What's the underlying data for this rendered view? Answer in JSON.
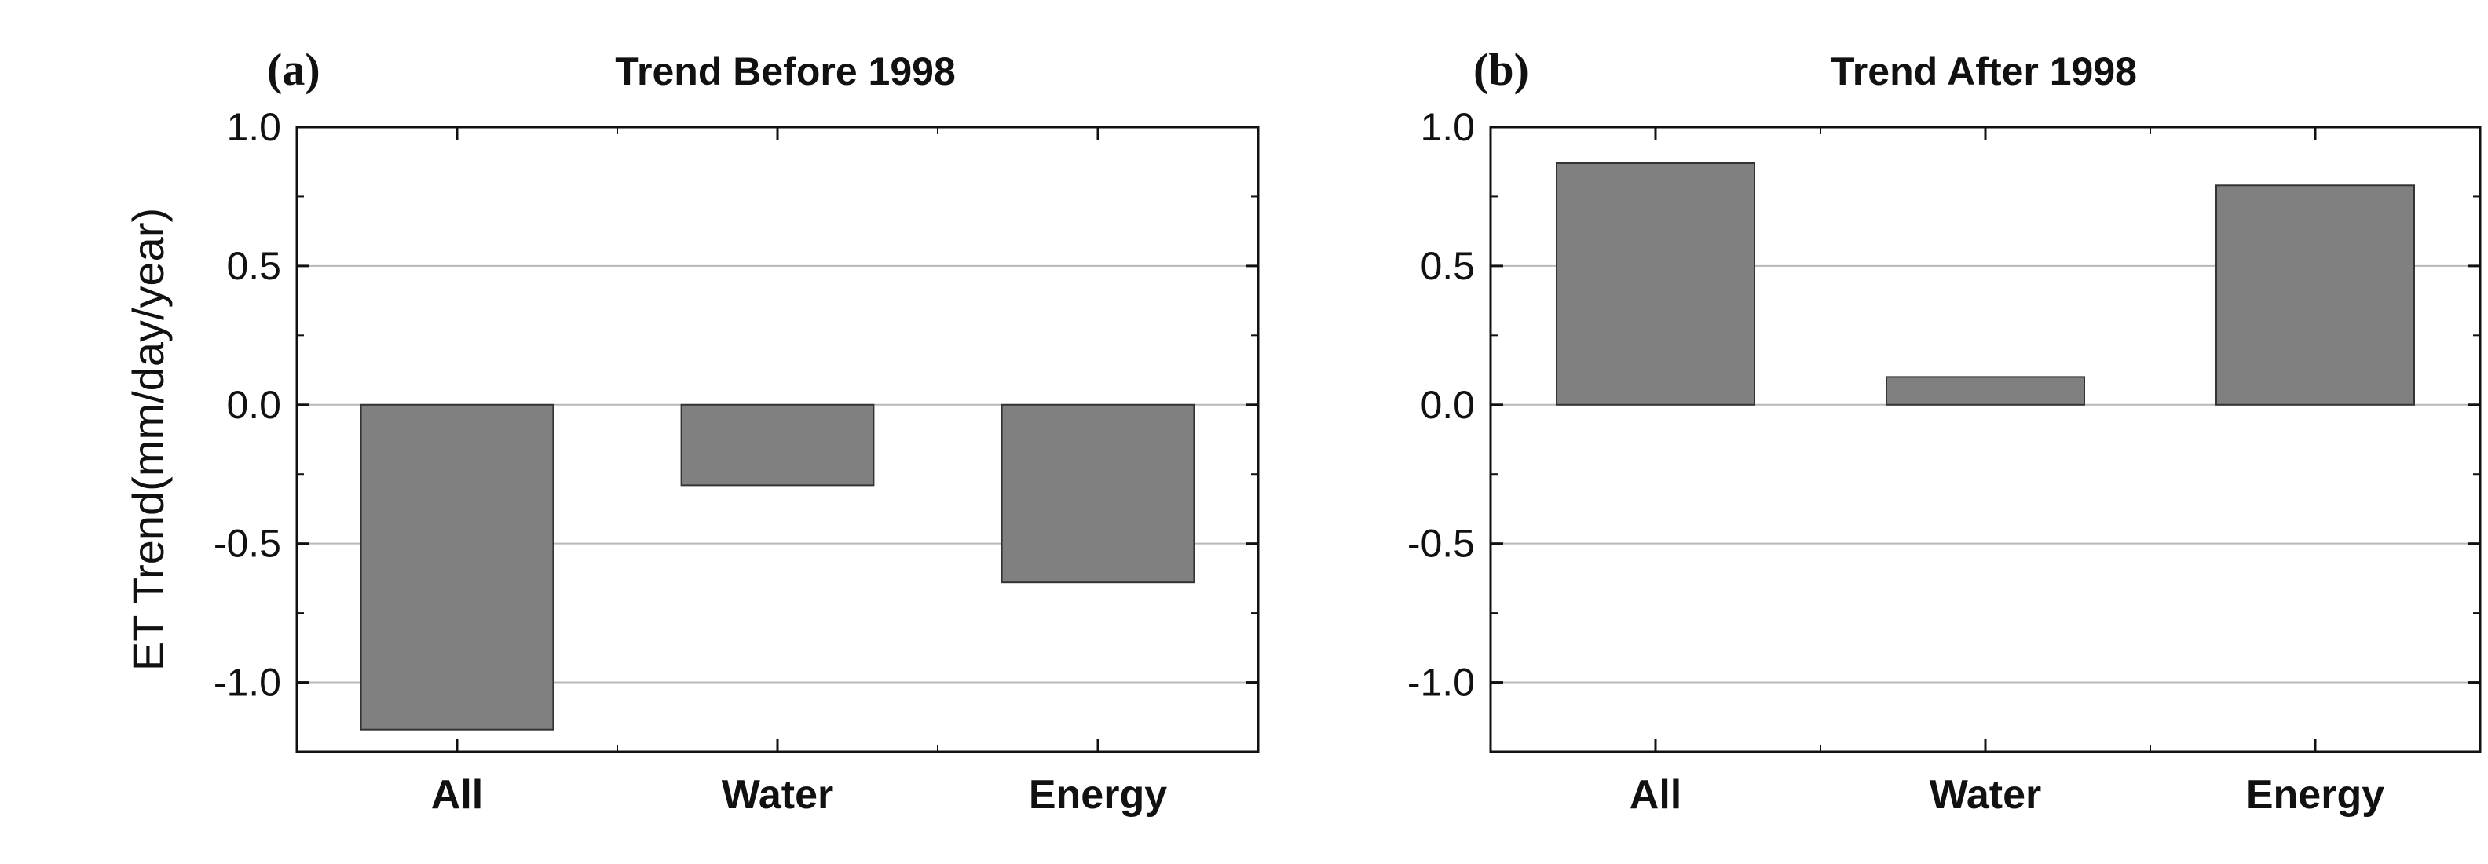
{
  "chart_data": [
    {
      "type": "bar",
      "panel_label": "(a)",
      "title": "Trend Before 1998",
      "ylabel": "ET Trend(mm/day/year)",
      "xlabel": "",
      "categories": [
        "All",
        "Water",
        "Energy"
      ],
      "values": [
        -1.17,
        -0.29,
        -0.64
      ],
      "ylim": [
        -1.25,
        1.0
      ],
      "yticks": [
        "1.0",
        "0.5",
        "0.0",
        "-0.5",
        "-1.0"
      ],
      "grid": true,
      "bar_color": "#808080"
    },
    {
      "type": "bar",
      "panel_label": "(b)",
      "title": "Trend After 1998",
      "ylabel": "",
      "xlabel": "",
      "categories": [
        "All",
        "Water",
        "Energy"
      ],
      "values": [
        0.87,
        0.1,
        0.79
      ],
      "ylim": [
        -1.25,
        1.0
      ],
      "yticks": [
        "1.0",
        "0.5",
        "0.0",
        "-0.5",
        "-1.0"
      ],
      "grid": true,
      "bar_color": "#808080"
    }
  ]
}
